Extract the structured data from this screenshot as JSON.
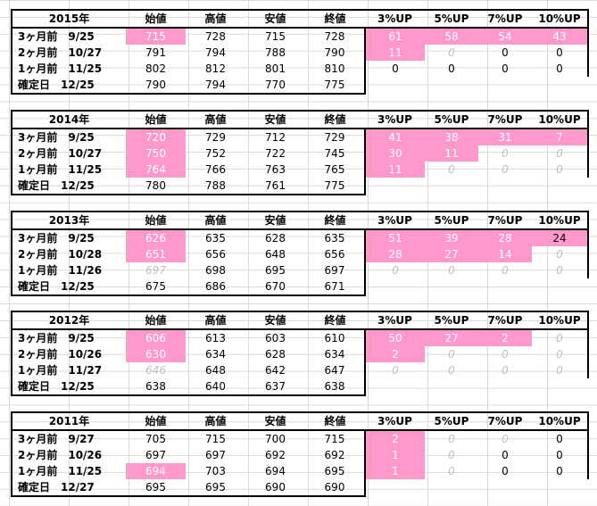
{
  "columns": [
    "始値",
    "高値",
    "安値",
    "終値",
    "3%UP",
    "5%UP",
    "7%UP",
    "10%UP"
  ],
  "blocks": [
    {
      "year": "2015年",
      "rows": [
        {
          "label": "3ヶ月前　9/25",
          "cells": [
            {
              "v": "715",
              "s": "pink"
            },
            {
              "v": "728"
            },
            {
              "v": "715"
            },
            {
              "v": "728"
            },
            {
              "v": "61",
              "s": "pink"
            },
            {
              "v": "58",
              "s": "pink"
            },
            {
              "v": "54",
              "s": "pink"
            },
            {
              "v": "43",
              "s": "pink"
            }
          ]
        },
        {
          "label": "2ヶ月前　10/27",
          "cells": [
            {
              "v": "791"
            },
            {
              "v": "794"
            },
            {
              "v": "788"
            },
            {
              "v": "790"
            },
            {
              "v": "11",
              "s": "pink"
            },
            {
              "v": "0",
              "s": "ital"
            },
            {
              "v": "0"
            },
            {
              "v": "0"
            }
          ]
        },
        {
          "label": "1ヶ月前　11/25",
          "cells": [
            {
              "v": "802"
            },
            {
              "v": "812"
            },
            {
              "v": "801"
            },
            {
              "v": "810"
            },
            {
              "v": "0"
            },
            {
              "v": "0"
            },
            {
              "v": "0"
            },
            {
              "v": "0"
            }
          ]
        },
        {
          "label": "確定日　12/25",
          "cells": [
            {
              "v": "790"
            },
            {
              "v": "794"
            },
            {
              "v": "770"
            },
            {
              "v": "775"
            },
            {
              "v": ""
            },
            {
              "v": ""
            },
            {
              "v": ""
            },
            {
              "v": ""
            }
          ]
        }
      ]
    },
    {
      "year": "2014年",
      "rows": [
        {
          "label": "3ヶ月前　9/25",
          "cells": [
            {
              "v": "720",
              "s": "pink"
            },
            {
              "v": "729"
            },
            {
              "v": "712"
            },
            {
              "v": "729"
            },
            {
              "v": "41",
              "s": "pink"
            },
            {
              "v": "38",
              "s": "pink"
            },
            {
              "v": "31",
              "s": "pink"
            },
            {
              "v": "7",
              "s": "pink"
            }
          ]
        },
        {
          "label": "2ヶ月前　10/27",
          "cells": [
            {
              "v": "750",
              "s": "pink"
            },
            {
              "v": "752"
            },
            {
              "v": "722"
            },
            {
              "v": "745"
            },
            {
              "v": "30",
              "s": "pink"
            },
            {
              "v": "11",
              "s": "pink"
            },
            {
              "v": "0",
              "s": "ital"
            },
            {
              "v": "0",
              "s": "ital"
            }
          ]
        },
        {
          "label": "1ヶ月前　11/25",
          "cells": [
            {
              "v": "764",
              "s": "pink"
            },
            {
              "v": "766"
            },
            {
              "v": "763"
            },
            {
              "v": "765"
            },
            {
              "v": "11",
              "s": "pink"
            },
            {
              "v": "0",
              "s": "ital"
            },
            {
              "v": "0",
              "s": "ital"
            },
            {
              "v": "0",
              "s": "ital"
            }
          ]
        },
        {
          "label": "確定日　12/25",
          "cells": [
            {
              "v": "780"
            },
            {
              "v": "788"
            },
            {
              "v": "761"
            },
            {
              "v": "775"
            },
            {
              "v": ""
            },
            {
              "v": ""
            },
            {
              "v": ""
            },
            {
              "v": ""
            }
          ]
        }
      ]
    },
    {
      "year": "2013年",
      "rows": [
        {
          "label": "3ヶ月前　9/25",
          "cells": [
            {
              "v": "626",
              "s": "pink"
            },
            {
              "v": "635"
            },
            {
              "v": "628"
            },
            {
              "v": "635"
            },
            {
              "v": "51",
              "s": "pink"
            },
            {
              "v": "39",
              "s": "pink"
            },
            {
              "v": "28",
              "s": "pink"
            },
            {
              "v": "24",
              "s": "pinkblk"
            }
          ]
        },
        {
          "label": "2ヶ月前　10/28",
          "cells": [
            {
              "v": "651",
              "s": "pink"
            },
            {
              "v": "656"
            },
            {
              "v": "648"
            },
            {
              "v": "656"
            },
            {
              "v": "28",
              "s": "pink"
            },
            {
              "v": "27",
              "s": "pink"
            },
            {
              "v": "14",
              "s": "pink"
            },
            {
              "v": "0",
              "s": "ital"
            }
          ]
        },
        {
          "label": "1ヶ月前　11/26",
          "cells": [
            {
              "v": "697",
              "s": "ital"
            },
            {
              "v": "698"
            },
            {
              "v": "695"
            },
            {
              "v": "697"
            },
            {
              "v": "0",
              "s": "ital"
            },
            {
              "v": "0",
              "s": "ital"
            },
            {
              "v": "0",
              "s": "ital"
            },
            {
              "v": "0",
              "s": "ital"
            }
          ]
        },
        {
          "label": "確定日　12/25",
          "cells": [
            {
              "v": "675"
            },
            {
              "v": "686"
            },
            {
              "v": "670"
            },
            {
              "v": "671"
            },
            {
              "v": ""
            },
            {
              "v": ""
            },
            {
              "v": ""
            },
            {
              "v": ""
            }
          ]
        }
      ]
    },
    {
      "year": "2012年",
      "rows": [
        {
          "label": "3ヶ月前　9/25",
          "cells": [
            {
              "v": "606",
              "s": "pink"
            },
            {
              "v": "613"
            },
            {
              "v": "603"
            },
            {
              "v": "610"
            },
            {
              "v": "50",
              "s": "pink"
            },
            {
              "v": "27",
              "s": "pink"
            },
            {
              "v": "2",
              "s": "pink"
            },
            {
              "v": "0",
              "s": "ital"
            }
          ]
        },
        {
          "label": "2ヶ月前　10/26",
          "cells": [
            {
              "v": "630",
              "s": "pink"
            },
            {
              "v": "634"
            },
            {
              "v": "628"
            },
            {
              "v": "634"
            },
            {
              "v": "2",
              "s": "pink"
            },
            {
              "v": "0",
              "s": "ital"
            },
            {
              "v": "0",
              "s": "ital"
            },
            {
              "v": "0",
              "s": "ital"
            }
          ]
        },
        {
          "label": "1ヶ月前　11/27",
          "cells": [
            {
              "v": "646",
              "s": "ital"
            },
            {
              "v": "648"
            },
            {
              "v": "642"
            },
            {
              "v": "647"
            },
            {
              "v": "0",
              "s": "ital"
            },
            {
              "v": "0",
              "s": "ital"
            },
            {
              "v": "0",
              "s": "ital"
            },
            {
              "v": "0",
              "s": "ital"
            }
          ]
        },
        {
          "label": "確定日　12/25",
          "cells": [
            {
              "v": "638"
            },
            {
              "v": "640"
            },
            {
              "v": "637"
            },
            {
              "v": "638"
            },
            {
              "v": ""
            },
            {
              "v": ""
            },
            {
              "v": ""
            },
            {
              "v": ""
            }
          ]
        }
      ]
    },
    {
      "year": "2011年",
      "rows": [
        {
          "label": "3ヶ月前　9/27",
          "cells": [
            {
              "v": "705"
            },
            {
              "v": "715"
            },
            {
              "v": "700"
            },
            {
              "v": "715"
            },
            {
              "v": "2",
              "s": "pink"
            },
            {
              "v": "0",
              "s": "ital"
            },
            {
              "v": "0",
              "s": "ital"
            },
            {
              "v": "0"
            }
          ]
        },
        {
          "label": "2ヶ月前　10/26",
          "cells": [
            {
              "v": "697"
            },
            {
              "v": "697"
            },
            {
              "v": "692"
            },
            {
              "v": "692"
            },
            {
              "v": "1",
              "s": "pink"
            },
            {
              "v": "0",
              "s": "ital"
            },
            {
              "v": "0"
            },
            {
              "v": "0"
            }
          ]
        },
        {
          "label": "1ヶ月前　11/25",
          "cells": [
            {
              "v": "694",
              "s": "pink"
            },
            {
              "v": "703"
            },
            {
              "v": "694"
            },
            {
              "v": "695"
            },
            {
              "v": "1",
              "s": "pink"
            },
            {
              "v": "0",
              "s": "ital"
            },
            {
              "v": "0"
            },
            {
              "v": "0"
            }
          ]
        },
        {
          "label": "確定日　12/27",
          "cells": [
            {
              "v": "695"
            },
            {
              "v": "695"
            },
            {
              "v": "690"
            },
            {
              "v": "690"
            },
            {
              "v": ""
            },
            {
              "v": ""
            },
            {
              "v": ""
            },
            {
              "v": ""
            }
          ]
        }
      ]
    }
  ]
}
